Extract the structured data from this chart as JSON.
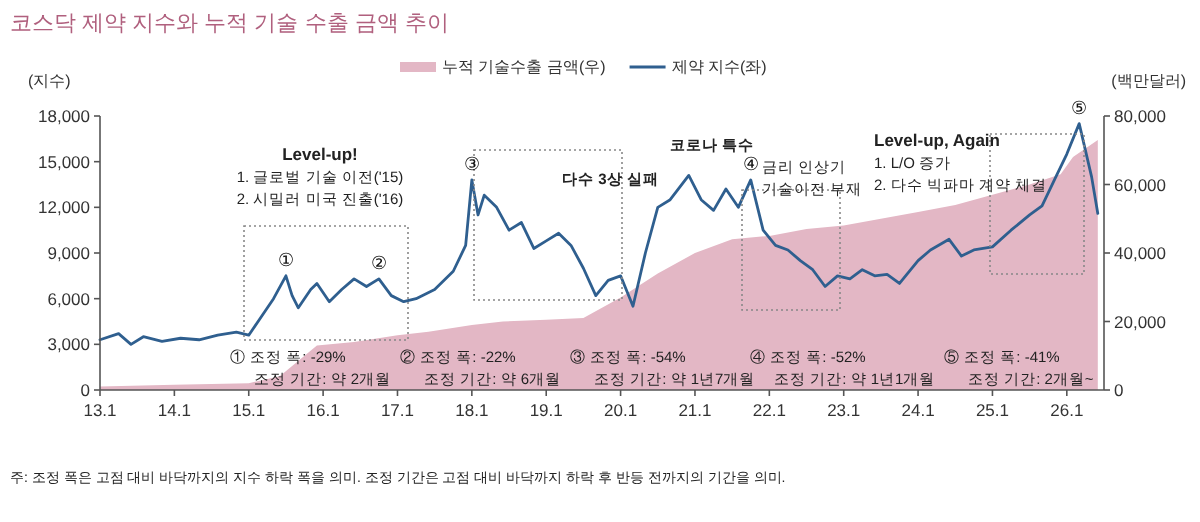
{
  "chart_data": {
    "type": "line",
    "title": "코스닥 제약 지수와 누적 기술 수출 금액 추이",
    "ylabel": "(지수)",
    "y2label": "(백만달러)",
    "legend": "top",
    "xlim": [
      "2013-01",
      "2026-07"
    ],
    "xticks": [
      {
        "value": "2013-01",
        "label": "13.1"
      },
      {
        "value": "2014-01",
        "label": "14.1"
      },
      {
        "value": "2015-01",
        "label": "15.1"
      },
      {
        "value": "2016-01",
        "label": "16.1"
      },
      {
        "value": "2017-01",
        "label": "17.1"
      },
      {
        "value": "2018-01",
        "label": "18.1"
      },
      {
        "value": "2019-01",
        "label": "19.1"
      },
      {
        "value": "2020-01",
        "label": "20.1"
      },
      {
        "value": "2021-01",
        "label": "21.1"
      },
      {
        "value": "2022-01",
        "label": "22.1"
      },
      {
        "value": "2023-01",
        "label": "23.1"
      },
      {
        "value": "2024-01",
        "label": "24.1"
      },
      {
        "value": "2025-01",
        "label": "25.1"
      },
      {
        "value": "2026-01",
        "label": "26.1"
      }
    ],
    "ylim": [
      0,
      18000
    ],
    "yticks": [
      0,
      {
        "value": 3000,
        "label": "3,000"
      },
      {
        "value": 6000,
        "label": "6,000"
      },
      {
        "value": 9000,
        "label": "9,000"
      },
      {
        "value": 12000,
        "label": "12,000"
      },
      {
        "value": 15000,
        "label": "15,000"
      },
      {
        "value": 18000,
        "label": "18,000"
      }
    ],
    "y2lim": [
      0,
      80000
    ],
    "y2ticks": [
      0,
      {
        "value": 20000,
        "label": "20,000"
      },
      {
        "value": 40000,
        "label": "40,000"
      },
      {
        "value": 60000,
        "label": "60,000"
      },
      {
        "value": 80000,
        "label": "80,000"
      }
    ],
    "series": [
      {
        "name": "누적 기술수출 금액(우)",
        "type": "area",
        "axis": "y2",
        "color": "#e3b7c5",
        "x": [
          "2013-01",
          "2014-01",
          "2015-01",
          "2015-06",
          "2015-10",
          "2015-12",
          "2016-06",
          "2017-01",
          "2017-06",
          "2018-01",
          "2018-06",
          "2019-01",
          "2019-07",
          "2020-01",
          "2020-07",
          "2021-01",
          "2021-07",
          "2022-01",
          "2022-07",
          "2023-01",
          "2023-07",
          "2024-01",
          "2024-07",
          "2025-01",
          "2025-07",
          "2025-12",
          "2026-02",
          "2026-06"
        ],
        "values": [
          1000,
          1500,
          2000,
          4000,
          10000,
          13000,
          14000,
          16000,
          17000,
          19000,
          20000,
          20500,
          21000,
          27000,
          34000,
          40000,
          44000,
          45000,
          47000,
          48000,
          50000,
          52000,
          54000,
          57000,
          60000,
          63000,
          68000,
          73000
        ]
      },
      {
        "name": "제약 지수(좌)",
        "type": "line",
        "color": "#2f5f8f",
        "x": [
          "2013-01",
          "2013-04",
          "2013-06",
          "2013-08",
          "2013-11",
          "2014-02",
          "2014-05",
          "2014-08",
          "2014-11",
          "2015-01",
          "2015-03",
          "2015-05",
          "2015-07",
          "2015-08",
          "2015-09",
          "2015-11",
          "2015-12",
          "2016-02",
          "2016-04",
          "2016-06",
          "2016-08",
          "2016-10",
          "2016-12",
          "2017-02",
          "2017-04",
          "2017-07",
          "2017-10",
          "2017-12",
          "2018-01",
          "2018-02",
          "2018-03",
          "2018-05",
          "2018-07",
          "2018-09",
          "2018-11",
          "2019-01",
          "2019-03",
          "2019-05",
          "2019-07",
          "2019-09",
          "2019-11",
          "2020-01",
          "2020-03",
          "2020-05",
          "2020-07",
          "2020-09",
          "2020-12",
          "2021-02",
          "2021-04",
          "2021-06",
          "2021-08",
          "2021-10",
          "2021-12",
          "2022-02",
          "2022-04",
          "2022-06",
          "2022-08",
          "2022-10",
          "2022-12",
          "2023-02",
          "2023-04",
          "2023-06",
          "2023-08",
          "2023-10",
          "2024-01",
          "2024-03",
          "2024-06",
          "2024-08",
          "2024-10",
          "2025-01",
          "2025-04",
          "2025-07",
          "2025-09",
          "2025-11",
          "2026-01",
          "2026-03",
          "2026-05",
          "2026-06"
        ],
        "values": [
          3300,
          3700,
          3000,
          3500,
          3200,
          3400,
          3300,
          3600,
          3800,
          3600,
          4800,
          6000,
          7500,
          6200,
          5400,
          6600,
          7000,
          5800,
          6600,
          7300,
          6800,
          7300,
          6200,
          5800,
          6000,
          6600,
          7800,
          9500,
          13800,
          11500,
          12800,
          12000,
          10500,
          11000,
          9300,
          9800,
          10300,
          9500,
          8000,
          6200,
          7200,
          7500,
          5500,
          9000,
          12000,
          12500,
          14100,
          12500,
          11800,
          13200,
          12000,
          13800,
          10500,
          9500,
          9200,
          8500,
          7900,
          6800,
          7500,
          7300,
          7900,
          7500,
          7600,
          7000,
          8500,
          9200,
          9900,
          8800,
          9200,
          9400,
          10500,
          11500,
          12100,
          13800,
          15500,
          17500,
          14000,
          11600
        ]
      }
    ],
    "annotations": [
      "Level-up!\n1. 글로벌 기술 이전('15)\n2. 시밀러 미국 진출('16)",
      "다수 3상 실패",
      "코로나 특수",
      "금리 인상기\n기술이전 부재",
      "Level-up, Again\n1. L/O 증가\n2. 다수 빅파마 계약 체결",
      "① 조정 폭: -29%\n조정 기간: 약 2개월",
      "② 조정 폭: -22%\n조정 기간: 약 6개월",
      "③ 조정 폭: -54%\n조정 기간: 약 1년7개월",
      "④ 조정 폭: -52%\n조정 기간: 약 1년1개월",
      "⑤ 조정 폭: -41%\n조정 기간: 2개월~",
      "주: 조정 폭은 고점 대비 바닥까지의 지수 하락 폭을 의미. 조정 기간은 고점 대비 바닥까지 하락 후 반등 전까지의 기간을 의미.",
      {
        "text": "①",
        "x": "2015-07",
        "y": 7500
      },
      {
        "text": "②",
        "x": "2016-10",
        "y": 7300
      },
      {
        "text": "③",
        "x": "2018-01",
        "y": 13800
      },
      {
        "text": "④",
        "x": "2021-10",
        "y": 13800
      },
      {
        "text": "⑤",
        "x": "2026-03",
        "y": 17500
      }
    ]
  }
}
